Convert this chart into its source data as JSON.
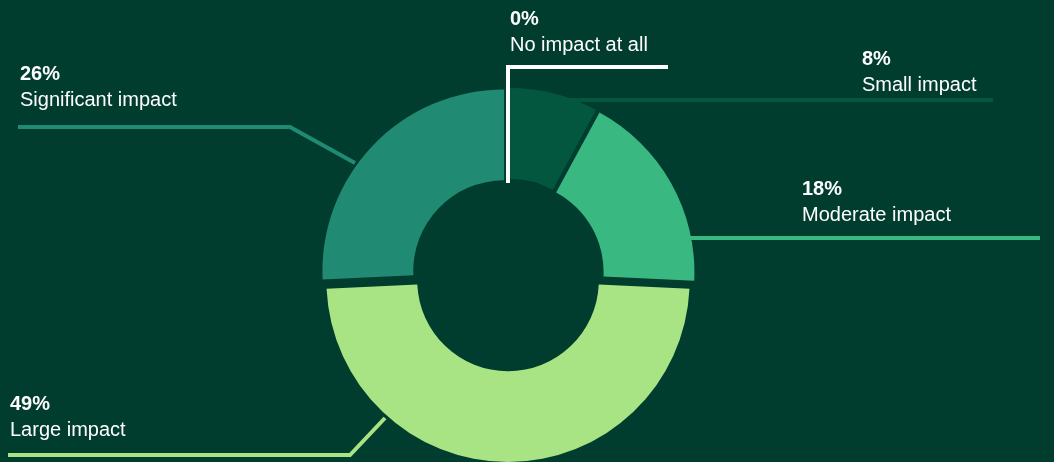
{
  "chart_data": {
    "type": "donut",
    "categories": [
      "No impact at all",
      "Small impact",
      "Moderate impact",
      "Large impact",
      "Significant impact"
    ],
    "values": [
      0,
      8,
      18,
      49,
      26
    ],
    "value_labels": [
      "0%",
      "8%",
      "18%",
      "49%",
      "26%"
    ],
    "colors": [
      "#ffffff",
      "#03573f",
      "#3ab882",
      "#a8e484",
      "#218a72"
    ],
    "legend": false
  }
}
